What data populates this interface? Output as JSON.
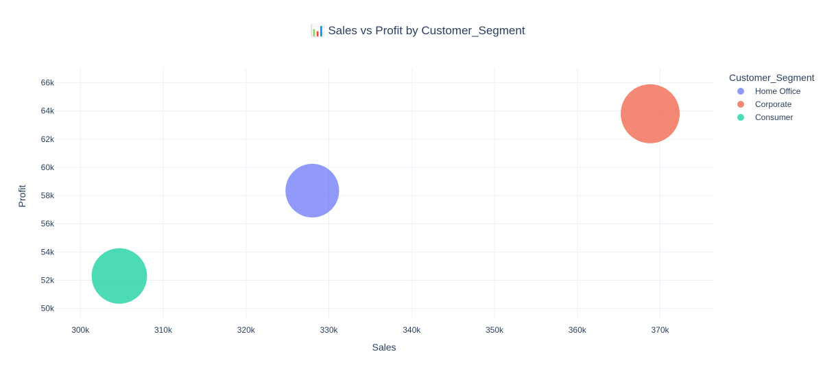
{
  "chart_data": {
    "type": "scatter",
    "title": "📊 Sales vs Profit by Customer_Segment",
    "xlabel": "Sales",
    "ylabel": "Profit",
    "xlim": [
      297000,
      376500
    ],
    "ylim": [
      49300,
      67000
    ],
    "x_ticks": [
      {
        "value": 300000,
        "label": "300k"
      },
      {
        "value": 310000,
        "label": "310k"
      },
      {
        "value": 320000,
        "label": "320k"
      },
      {
        "value": 330000,
        "label": "330k"
      },
      {
        "value": 340000,
        "label": "340k"
      },
      {
        "value": 350000,
        "label": "350k"
      },
      {
        "value": 360000,
        "label": "360k"
      },
      {
        "value": 370000,
        "label": "370k"
      }
    ],
    "y_ticks": [
      {
        "value": 50000,
        "label": "50k"
      },
      {
        "value": 52000,
        "label": "52k"
      },
      {
        "value": 54000,
        "label": "54k"
      },
      {
        "value": 56000,
        "label": "56k"
      },
      {
        "value": 58000,
        "label": "58k"
      },
      {
        "value": 60000,
        "label": "60k"
      },
      {
        "value": 62000,
        "label": "62k"
      },
      {
        "value": 64000,
        "label": "64k"
      },
      {
        "value": 66000,
        "label": "66k"
      }
    ],
    "grid": true,
    "legend_title": "Customer_Segment",
    "legend_position": "right",
    "series": [
      {
        "name": "Home Office",
        "color": "#636efa",
        "x": 328000,
        "y": 58350,
        "size": 0.91
      },
      {
        "name": "Corporate",
        "color": "#ef553b",
        "x": 368800,
        "y": 63800,
        "size": 1.0
      },
      {
        "name": "Consumer",
        "color": "#00cc96",
        "x": 304700,
        "y": 52300,
        "size": 0.94
      }
    ],
    "marker_opacity": 0.7
  }
}
